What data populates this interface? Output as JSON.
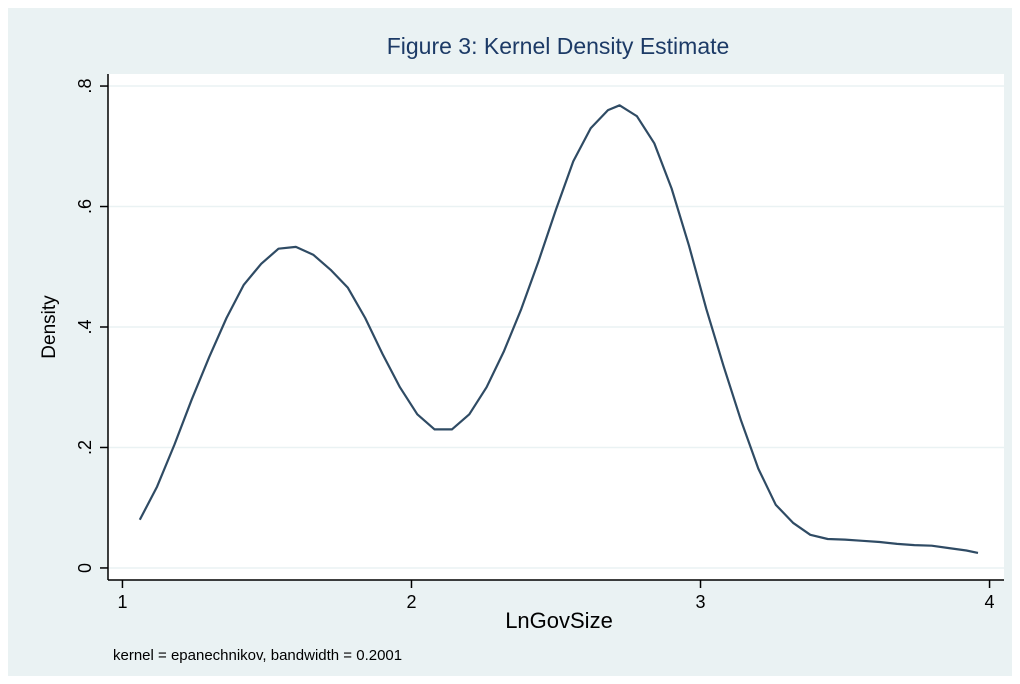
{
  "chart_data": {
    "type": "line",
    "title": "Figure 3: Kernel Density Estimate",
    "xlabel": "LnGovSize",
    "ylabel": "Density",
    "note": "kernel = epanechnikov, bandwidth = 0.2001",
    "xlim": [
      0.95,
      4.05
    ],
    "ylim": [
      -0.02,
      0.82
    ],
    "xticks": [
      1,
      2,
      3,
      4
    ],
    "xtick_labels": [
      "1",
      "2",
      "3",
      "4"
    ],
    "yticks": [
      0,
      0.2,
      0.4,
      0.6,
      0.8
    ],
    "ytick_labels": [
      "0",
      ".2",
      ".4",
      ".6",
      ".8"
    ],
    "grid": true,
    "colors": {
      "line": "#2f4b64",
      "background": "#eaf2f3",
      "plot_area": "#ffffff",
      "title": "#1c3a66",
      "grid": "#eaf2f3"
    },
    "x": [
      1.06,
      1.12,
      1.18,
      1.24,
      1.3,
      1.36,
      1.42,
      1.48,
      1.54,
      1.6,
      1.66,
      1.72,
      1.78,
      1.84,
      1.9,
      1.96,
      2.02,
      2.08,
      2.14,
      2.2,
      2.26,
      2.32,
      2.38,
      2.44,
      2.5,
      2.56,
      2.62,
      2.68,
      2.72,
      2.78,
      2.84,
      2.9,
      2.96,
      3.02,
      3.08,
      3.14,
      3.2,
      3.26,
      3.32,
      3.38,
      3.44,
      3.5,
      3.56,
      3.62,
      3.68,
      3.74,
      3.8,
      3.86,
      3.92,
      3.96
    ],
    "y": [
      0.08,
      0.135,
      0.205,
      0.28,
      0.35,
      0.415,
      0.47,
      0.505,
      0.53,
      0.533,
      0.52,
      0.495,
      0.465,
      0.415,
      0.355,
      0.3,
      0.255,
      0.23,
      0.23,
      0.255,
      0.3,
      0.36,
      0.43,
      0.51,
      0.595,
      0.675,
      0.73,
      0.76,
      0.768,
      0.75,
      0.705,
      0.63,
      0.535,
      0.43,
      0.335,
      0.245,
      0.165,
      0.105,
      0.075,
      0.055,
      0.048,
      0.047,
      0.045,
      0.043,
      0.04,
      0.038,
      0.037,
      0.033,
      0.029,
      0.025
    ],
    "series": [
      {
        "values_from": "y"
      }
    ]
  }
}
